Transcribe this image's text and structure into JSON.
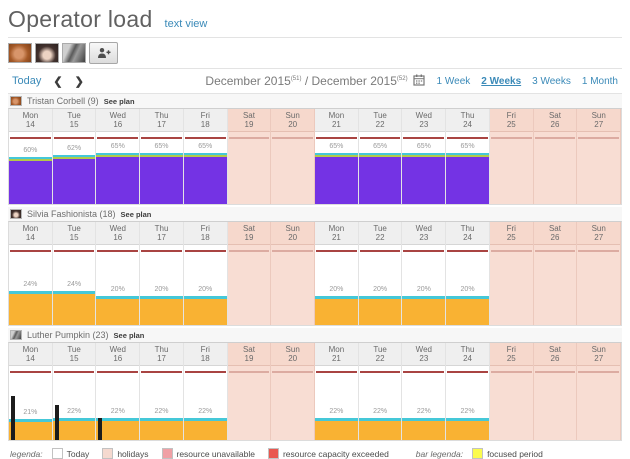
{
  "header": {
    "title": "Operator load",
    "text_view": "text view"
  },
  "avatar_bar": {
    "avatars": [
      "Tristan Corbell",
      "Silvia Fashionista",
      "Luther Pumpkin"
    ],
    "add_icon": "person-plus-icon"
  },
  "toolbar": {
    "today_label": "Today",
    "prev_icon": "chevron-left",
    "next_icon": "chevron-right",
    "date_range": {
      "left": "December 2015",
      "left_sup": "(51)",
      "sep": " / ",
      "right": "December 2015",
      "right_sup": "(52)"
    },
    "calendar_icon": "calendar-icon",
    "views": [
      {
        "label": "1 Week",
        "selected": false
      },
      {
        "label": "2 Weeks",
        "selected": true
      },
      {
        "label": "3 Weeks",
        "selected": false
      },
      {
        "label": "1 Month",
        "selected": false
      }
    ]
  },
  "days": [
    {
      "dow": "Mon",
      "date": "14",
      "holiday": false
    },
    {
      "dow": "Tue",
      "date": "15",
      "holiday": false
    },
    {
      "dow": "Wed",
      "date": "16",
      "holiday": false
    },
    {
      "dow": "Thu",
      "date": "17",
      "holiday": false
    },
    {
      "dow": "Fri",
      "date": "18",
      "holiday": false
    },
    {
      "dow": "Sat",
      "date": "19",
      "holiday": true
    },
    {
      "dow": "Sun",
      "date": "20",
      "holiday": true
    },
    {
      "dow": "Mon",
      "date": "21",
      "holiday": false
    },
    {
      "dow": "Tue",
      "date": "22",
      "holiday": false
    },
    {
      "dow": "Wed",
      "date": "23",
      "holiday": false
    },
    {
      "dow": "Thu",
      "date": "24",
      "holiday": false
    },
    {
      "dow": "Fri",
      "date": "25",
      "holiday": true
    },
    {
      "dow": "Sat",
      "date": "26",
      "holiday": true
    },
    {
      "dow": "Sun",
      "date": "27",
      "holiday": true
    }
  ],
  "operators": [
    {
      "name": "Tristan Corbell (9)",
      "see_plan_label": "See plan",
      "bar_color": "#7433e4",
      "top_strips": [
        "#45c8d8",
        "#b3c94a"
      ],
      "loads_pct": [
        60,
        62,
        65,
        65,
        65,
        null,
        null,
        65,
        65,
        65,
        65,
        null,
        null,
        null
      ]
    },
    {
      "name": "Silvia Fashionista (18)",
      "see_plan_label": "See plan",
      "bar_color": "#f9b233",
      "top_strips": [
        "#45c8d8"
      ],
      "loads_pct": [
        24,
        24,
        20,
        20,
        20,
        null,
        null,
        20,
        20,
        20,
        20,
        null,
        null,
        null
      ]
    },
    {
      "name": "Luther Pumpkin (23)",
      "see_plan_label": "See plan",
      "bar_color": "#f9b233",
      "top_strips": [
        "#45c8d8"
      ],
      "loads_pct": [
        21,
        22,
        22,
        22,
        22,
        null,
        null,
        22,
        22,
        22,
        22,
        null,
        null,
        null
      ],
      "black_bars": [
        {
          "day_index": 0,
          "height_pct": 60
        },
        {
          "day_index": 1,
          "height_pct": 47
        },
        {
          "day_index": 2,
          "height_pct": 30
        }
      ]
    }
  ],
  "legend": {
    "prefix": "legenda:",
    "items": [
      {
        "label": "Today",
        "color": "#ffffff"
      },
      {
        "label": "holidays",
        "color": "#f5d9cf"
      },
      {
        "label": "resource unavailable",
        "color": "#f0a0a5"
      },
      {
        "label": "resource capacity exceeded",
        "color": "#e9574f"
      }
    ],
    "bar_prefix": "bar legenda:",
    "bar_items": [
      {
        "label": "focused period",
        "color": "#fbfb4e"
      }
    ]
  },
  "colors": {
    "link": "#3b8ab8",
    "capacity_line": "#a94442",
    "holiday_bg": "#f8ddd3",
    "cyan_strip": "#45c8d8",
    "olive_strip": "#b3c94a",
    "purple_bar": "#7433e4",
    "orange_bar": "#f9b233"
  }
}
